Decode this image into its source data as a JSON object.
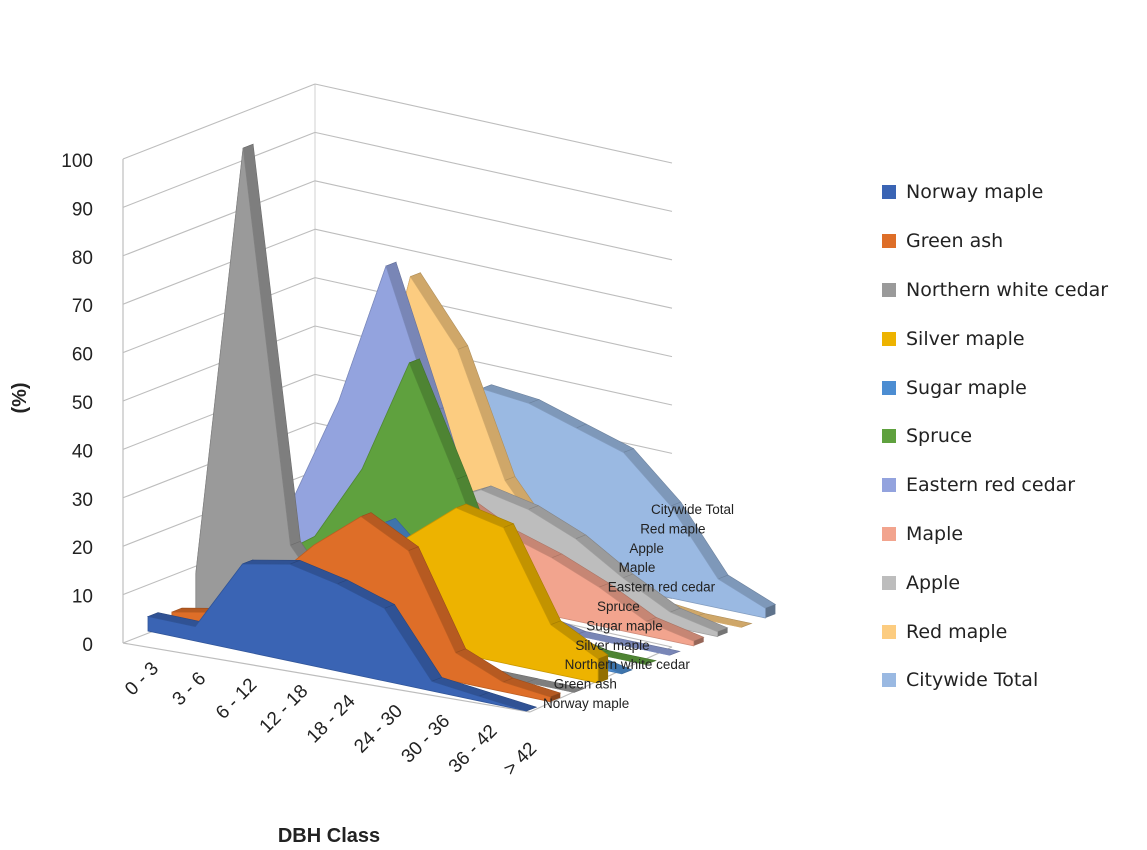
{
  "chart_data": {
    "type": "area",
    "title": "",
    "xlabel": "DBH Class",
    "ylabel": "(%)",
    "ylim": [
      0,
      100
    ],
    "y_ticks": [
      "0",
      "10",
      "20",
      "30",
      "40",
      "50",
      "60",
      "70",
      "80",
      "90",
      "100"
    ],
    "categories": [
      "0 - 3",
      "3 - 6",
      "6 - 12",
      "12 - 18",
      "18 - 24",
      "24 - 30",
      "30 - 36",
      "36 - 42",
      "> 42"
    ],
    "series": [
      {
        "name": "Norway maple",
        "color": "#3A64B4",
        "values": [
          3,
          3,
          18,
          20,
          18,
          15,
          2,
          1,
          0
        ]
      },
      {
        "name": "Green ash",
        "color": "#DE6E28",
        "values": [
          2,
          4,
          12,
          22,
          30,
          25,
          6,
          2,
          1
        ]
      },
      {
        "name": "Northern white cedar",
        "color": "#9A9A9A",
        "values": [
          8,
          98,
          18,
          6,
          2,
          1,
          0,
          0,
          0
        ]
      },
      {
        "name": "Silver maple",
        "color": "#EDB300",
        "values": [
          2,
          3,
          8,
          13,
          22,
          30,
          28,
          10,
          5
        ]
      },
      {
        "name": "Sugar maple",
        "color": "#4C8DD2",
        "values": [
          3,
          5,
          12,
          21,
          12,
          21,
          9,
          2,
          0
        ]
      },
      {
        "name": "Spruce",
        "color": "#5FA13E",
        "values": [
          5,
          12,
          28,
          52,
          30,
          6,
          2,
          0,
          0
        ]
      },
      {
        "name": "Eastern red cedar",
        "color": "#93A3DE",
        "values": [
          15,
          38,
          68,
          40,
          10,
          2,
          0,
          0,
          0
        ]
      },
      {
        "name": "Maple",
        "color": "#F2A48E",
        "values": [
          8,
          20,
          22,
          20,
          15,
          12,
          8,
          3,
          1
        ]
      },
      {
        "name": "Apple",
        "color": "#BDBDBD",
        "values": [
          3,
          8,
          15,
          20,
          18,
          14,
          8,
          3,
          1
        ]
      },
      {
        "name": "Red maple",
        "color": "#FCCC80",
        "values": [
          18,
          58,
          45,
          20,
          8,
          3,
          1,
          0,
          0
        ]
      },
      {
        "name": "Citywide Total",
        "color": "#9AB9E2",
        "values": [
          12,
          25,
          35,
          34,
          31,
          28,
          19,
          6,
          2
        ]
      }
    ],
    "depth_labels": [
      "Norway maple",
      "Green ash",
      "Northern white cedar",
      "Silver maple",
      "Sugar maple",
      "Spruce",
      "Eastern red cedar",
      "Maple",
      "Apple",
      "Red maple",
      "Citywide Total"
    ],
    "legend_position": "right",
    "grid": true
  }
}
